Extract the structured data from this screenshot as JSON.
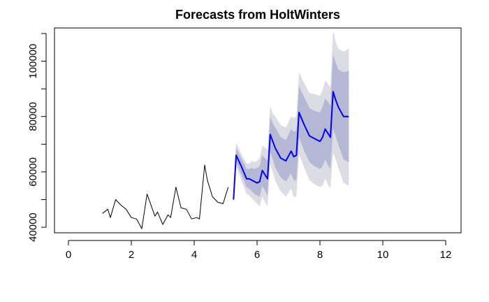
{
  "chart_data": {
    "type": "line",
    "title": "Forecasts from HoltWinters",
    "xlabel": "",
    "ylabel": "",
    "xlim": [
      0,
      12
    ],
    "ylim": [
      38000,
      112000
    ],
    "x_ticks": [
      0,
      2,
      4,
      6,
      8,
      10,
      12
    ],
    "y_ticks": [
      40000,
      60000,
      80000,
      100000
    ],
    "grid": false,
    "legend": "none",
    "colors": {
      "observed": "#000000",
      "forecast": "#0000ee",
      "band_95": "#dcdce4",
      "band_80": "#b4b8d4"
    },
    "series": [
      {
        "role": "observed",
        "x": [
          1.083,
          1.25,
          1.333,
          1.5,
          1.667,
          1.833,
          2.0,
          2.167,
          2.333,
          2.5,
          2.75,
          2.833,
          3.0,
          3.167,
          3.25,
          3.417,
          3.583,
          3.75,
          3.917,
          4.083,
          4.167,
          4.333,
          4.417,
          4.583,
          4.75,
          4.917,
          5.083
        ],
        "y": [
          45000,
          46500,
          43500,
          50000,
          48000,
          46500,
          43500,
          43000,
          39500,
          52000,
          44000,
          45500,
          41000,
          44500,
          43500,
          54500,
          47000,
          46500,
          43000,
          43500,
          43000,
          62500,
          57000,
          51000,
          49000,
          48500,
          54500
        ]
      },
      {
        "role": "forecast",
        "x": [
          5.25,
          5.333,
          5.5,
          5.667,
          5.75,
          5.833,
          5.917,
          6.0,
          6.083,
          6.167,
          6.333,
          6.417,
          6.5,
          6.583,
          6.75,
          6.917,
          7.083,
          7.167,
          7.25,
          7.333,
          7.5,
          7.667,
          7.833,
          8.0,
          8.083,
          8.167,
          8.25,
          8.333,
          8.417,
          8.5,
          8.583,
          8.75,
          8.917
        ],
        "y": [
          50000,
          66000,
          62000,
          57500,
          57500,
          57000,
          56500,
          56000,
          56500,
          60500,
          57500,
          73500,
          71000,
          68500,
          65000,
          64000,
          67500,
          65500,
          66000,
          81500,
          77000,
          73000,
          72000,
          71000,
          72500,
          75500,
          74000,
          72500,
          89000,
          86000,
          83500,
          80000,
          80000
        ]
      },
      {
        "role": "pi80_upper",
        "y": [
          51000,
          68500,
          65000,
          61000,
          61000,
          61500,
          61000,
          61500,
          62000,
          66000,
          64000,
          80000,
          77500,
          76000,
          72500,
          71500,
          75500,
          74500,
          75000,
          91000,
          87000,
          83000,
          82000,
          81500,
          83500,
          86500,
          85500,
          84000,
          102500,
          99500,
          97000,
          96000,
          96500
        ]
      },
      {
        "role": "pi80_lower",
        "y": [
          49000,
          63500,
          59000,
          54500,
          54000,
          53000,
          52000,
          51500,
          51000,
          55000,
          51500,
          67500,
          64500,
          61500,
          58000,
          56500,
          59500,
          57000,
          57000,
          72500,
          67500,
          63500,
          62000,
          61000,
          62000,
          64500,
          62500,
          61000,
          75500,
          73000,
          70000,
          64500,
          63500
        ]
      },
      {
        "role": "pi95_upper",
        "y": [
          51500,
          70500,
          66500,
          63000,
          63000,
          64000,
          63500,
          64000,
          65000,
          69500,
          68000,
          84000,
          81000,
          80000,
          77000,
          76000,
          80000,
          79500,
          80000,
          96000,
          92000,
          88500,
          88000,
          87500,
          89500,
          93000,
          92000,
          90500,
          111000,
          107000,
          104500,
          103500,
          104500
        ]
      },
      {
        "role": "pi95_lower",
        "y": [
          48500,
          62000,
          57000,
          52000,
          51500,
          50500,
          49500,
          48500,
          47500,
          51000,
          47500,
          63000,
          60000,
          56500,
          53000,
          51000,
          54000,
          51000,
          51000,
          66500,
          61500,
          57000,
          55500,
          54500,
          55000,
          57500,
          55500,
          54000,
          67000,
          64500,
          61500,
          56000,
          55000
        ]
      }
    ]
  }
}
